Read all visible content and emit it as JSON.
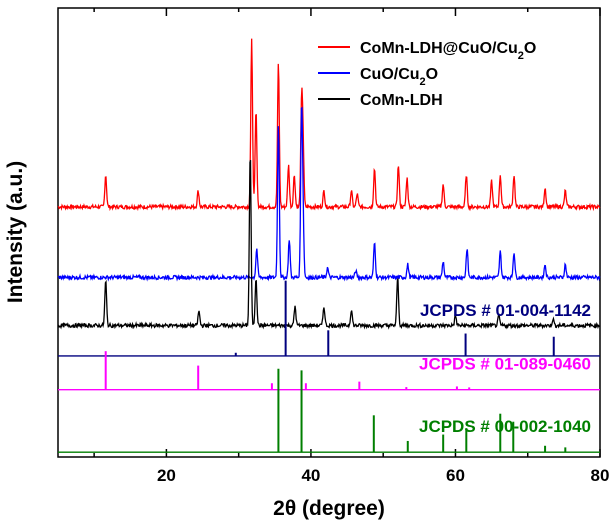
{
  "chart_data": {
    "type": "line",
    "title": "",
    "xlabel": "2θ (degree)",
    "ylabel": "Intensity (a.u.)",
    "xlim": [
      5,
      80
    ],
    "xticks": [
      20,
      40,
      60,
      80
    ],
    "yticks_shown": false,
    "legend_position": "top-right",
    "legend": [
      {
        "name": "CoMn-LDH@CuO/Cu",
        "sub": "2",
        "tail": "O",
        "color": "#ff0000"
      },
      {
        "name": "CuO/Cu",
        "sub": "2",
        "tail": "O",
        "color": "#0000ff"
      },
      {
        "name": "CoMn-LDH",
        "sub": "",
        "tail": "",
        "color": "#000000"
      }
    ],
    "series": [
      {
        "name": "CoMn-LDH@CuO/Cu2O",
        "kind": "pattern",
        "color": "#ff0000",
        "baseline": 7.8,
        "noise": 0.06,
        "peaks": [
          [
            11.6,
            1.0
          ],
          [
            24.4,
            0.5
          ],
          [
            31.8,
            5.2
          ],
          [
            32.4,
            3.0
          ],
          [
            35.5,
            4.5
          ],
          [
            36.9,
            1.3
          ],
          [
            37.7,
            1.0
          ],
          [
            38.7,
            3.0
          ],
          [
            38.9,
            2.0
          ],
          [
            41.8,
            0.5
          ],
          [
            45.6,
            0.5
          ],
          [
            46.4,
            0.4
          ],
          [
            48.8,
            1.2
          ],
          [
            52.1,
            1.3
          ],
          [
            53.3,
            0.9
          ],
          [
            58.3,
            0.7
          ],
          [
            61.5,
            1.0
          ],
          [
            65.0,
            0.8
          ],
          [
            66.2,
            1.0
          ],
          [
            68.1,
            1.0
          ],
          [
            72.4,
            0.6
          ],
          [
            75.2,
            0.5
          ]
        ]
      },
      {
        "name": "CuO/Cu2O",
        "kind": "pattern",
        "color": "#0000ff",
        "baseline": 5.6,
        "noise": 0.06,
        "peaks": [
          [
            32.5,
            0.9
          ],
          [
            35.5,
            4.8
          ],
          [
            37.0,
            1.2
          ],
          [
            38.7,
            5.0
          ],
          [
            38.9,
            1.8
          ],
          [
            42.3,
            0.3
          ],
          [
            46.2,
            0.2
          ],
          [
            48.8,
            1.1
          ],
          [
            53.4,
            0.4
          ],
          [
            58.3,
            0.5
          ],
          [
            61.6,
            0.9
          ],
          [
            66.2,
            0.8
          ],
          [
            68.1,
            0.8
          ],
          [
            72.4,
            0.4
          ],
          [
            75.2,
            0.4
          ]
        ]
      },
      {
        "name": "CoMn-LDH",
        "kind": "pattern",
        "color": "#000000",
        "baseline": 4.1,
        "noise": 0.06,
        "peaks": [
          [
            11.6,
            1.4
          ],
          [
            24.5,
            0.45
          ],
          [
            31.6,
            5.4
          ],
          [
            32.4,
            1.5
          ],
          [
            37.8,
            0.6
          ],
          [
            41.8,
            0.6
          ],
          [
            45.6,
            0.5
          ],
          [
            52.0,
            1.5
          ],
          [
            60.0,
            0.3
          ],
          [
            66.0,
            0.3
          ],
          [
            73.5,
            0.2
          ]
        ]
      },
      {
        "name": "JCPDS # 01-004-1142",
        "kind": "reference",
        "color": "#00007f",
        "baseline": 3.15,
        "label": "JCPDS # 01-004-1142",
        "lines": [
          [
            29.6,
            0.1
          ],
          [
            36.5,
            2.35
          ],
          [
            42.4,
            0.8
          ],
          [
            61.4,
            0.7
          ],
          [
            73.6,
            0.6
          ]
        ]
      },
      {
        "name": "JCPDS # 01-089-0460",
        "kind": "reference",
        "color": "#ff00ff",
        "baseline": 2.1,
        "label": "JCPDS # 01-089-0460",
        "lines": [
          [
            11.6,
            1.2
          ],
          [
            24.4,
            0.75
          ],
          [
            34.6,
            0.2
          ],
          [
            39.3,
            0.2
          ],
          [
            46.7,
            0.25
          ],
          [
            53.2,
            0.08
          ],
          [
            60.2,
            0.1
          ],
          [
            61.9,
            0.07
          ]
        ]
      },
      {
        "name": "JCPDS # 00-002-1040",
        "kind": "reference",
        "color": "#007f00",
        "baseline": 0.15,
        "label": "JCPDS # 00-002-1040",
        "lines": [
          [
            35.5,
            2.6
          ],
          [
            38.7,
            2.55
          ],
          [
            48.7,
            1.15
          ],
          [
            53.4,
            0.35
          ],
          [
            58.3,
            0.55
          ],
          [
            61.5,
            0.75
          ],
          [
            66.2,
            1.2
          ],
          [
            68.0,
            0.95
          ],
          [
            72.4,
            0.2
          ],
          [
            75.2,
            0.15
          ]
        ]
      }
    ]
  }
}
